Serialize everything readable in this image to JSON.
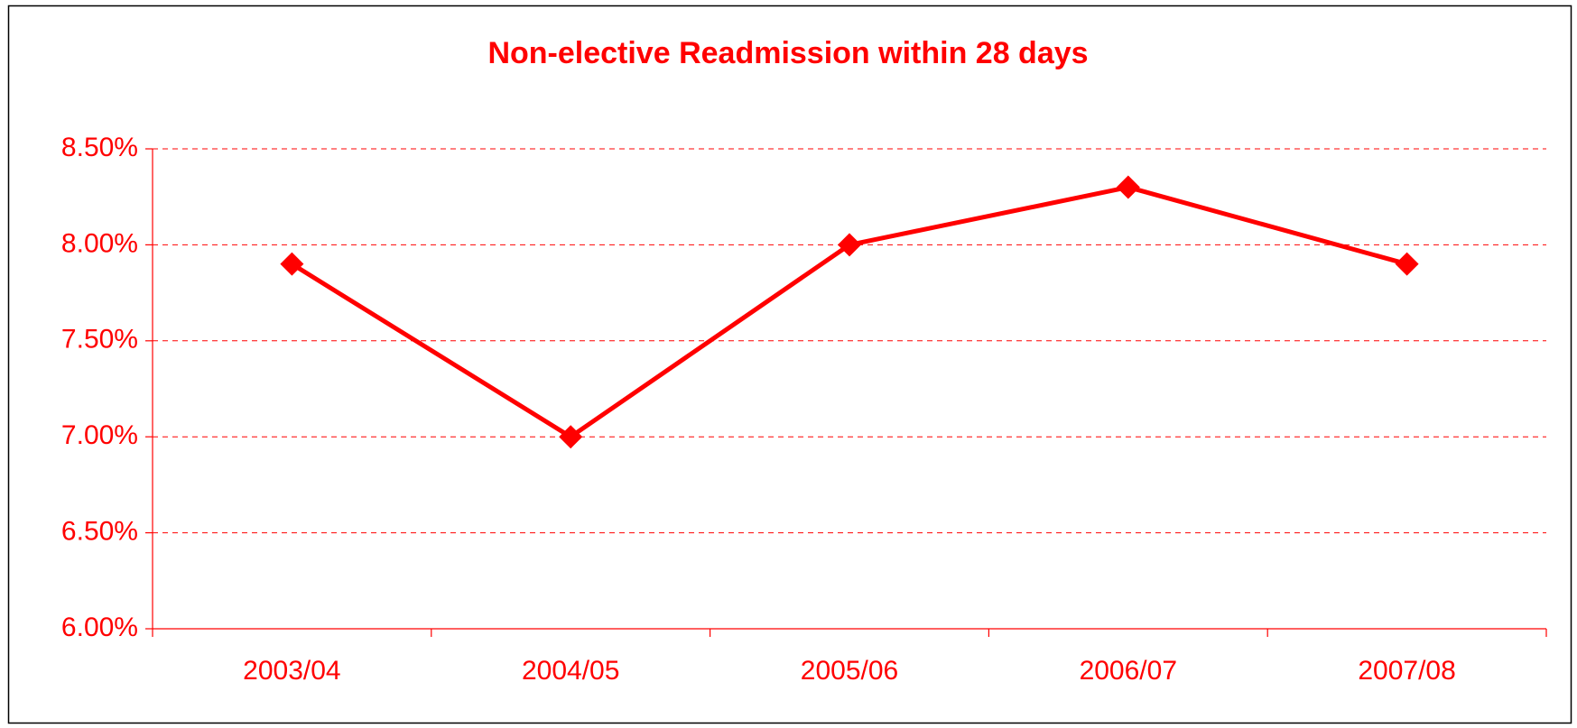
{
  "chart_data": {
    "type": "line",
    "title": "Non-elective Readmission within 28 days",
    "categories": [
      "2003/04",
      "2004/05",
      "2005/06",
      "2006/07",
      "2007/08"
    ],
    "series": [
      {
        "name": "Non-elective Readmission within 28 days",
        "color": "#ff0000",
        "values": [
          7.9,
          7.0,
          8.0,
          8.3,
          7.9
        ]
      }
    ],
    "ylim": [
      6.0,
      8.5
    ],
    "yticks": [
      {
        "value": 6.0,
        "label": "6.00%"
      },
      {
        "value": 6.5,
        "label": "6.50%"
      },
      {
        "value": 7.0,
        "label": "7.00%"
      },
      {
        "value": 7.5,
        "label": "7.50%"
      },
      {
        "value": 8.0,
        "label": "8.00%"
      },
      {
        "value": 8.5,
        "label": "8.50%"
      }
    ],
    "grid": true,
    "legend": false
  }
}
